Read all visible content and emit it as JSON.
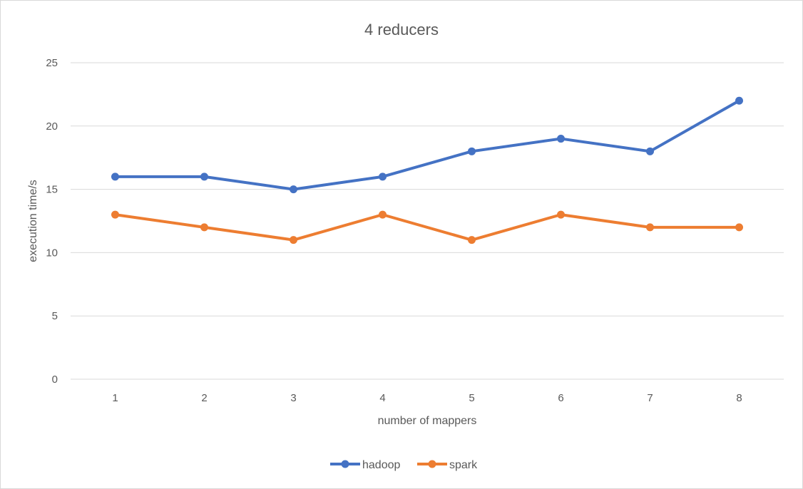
{
  "chart_data": {
    "type": "line",
    "title": "4 reducers",
    "xlabel": "number of mappers",
    "ylabel": "execution time/s",
    "categories": [
      "1",
      "2",
      "3",
      "4",
      "5",
      "6",
      "7",
      "8"
    ],
    "ylim": [
      0,
      25
    ],
    "yticks": [
      "0",
      "5",
      "10",
      "15",
      "20",
      "25"
    ],
    "ytick_values": [
      0,
      5,
      10,
      15,
      20,
      25
    ],
    "grid": true,
    "legend_position": "bottom",
    "series": [
      {
        "name": "hadoop",
        "color": "#4472C4",
        "values": [
          16,
          16,
          15,
          16,
          18,
          19,
          18,
          22
        ]
      },
      {
        "name": "spark",
        "color": "#ED7D31",
        "values": [
          13,
          12,
          11,
          13,
          11,
          13,
          12,
          12
        ]
      }
    ]
  }
}
